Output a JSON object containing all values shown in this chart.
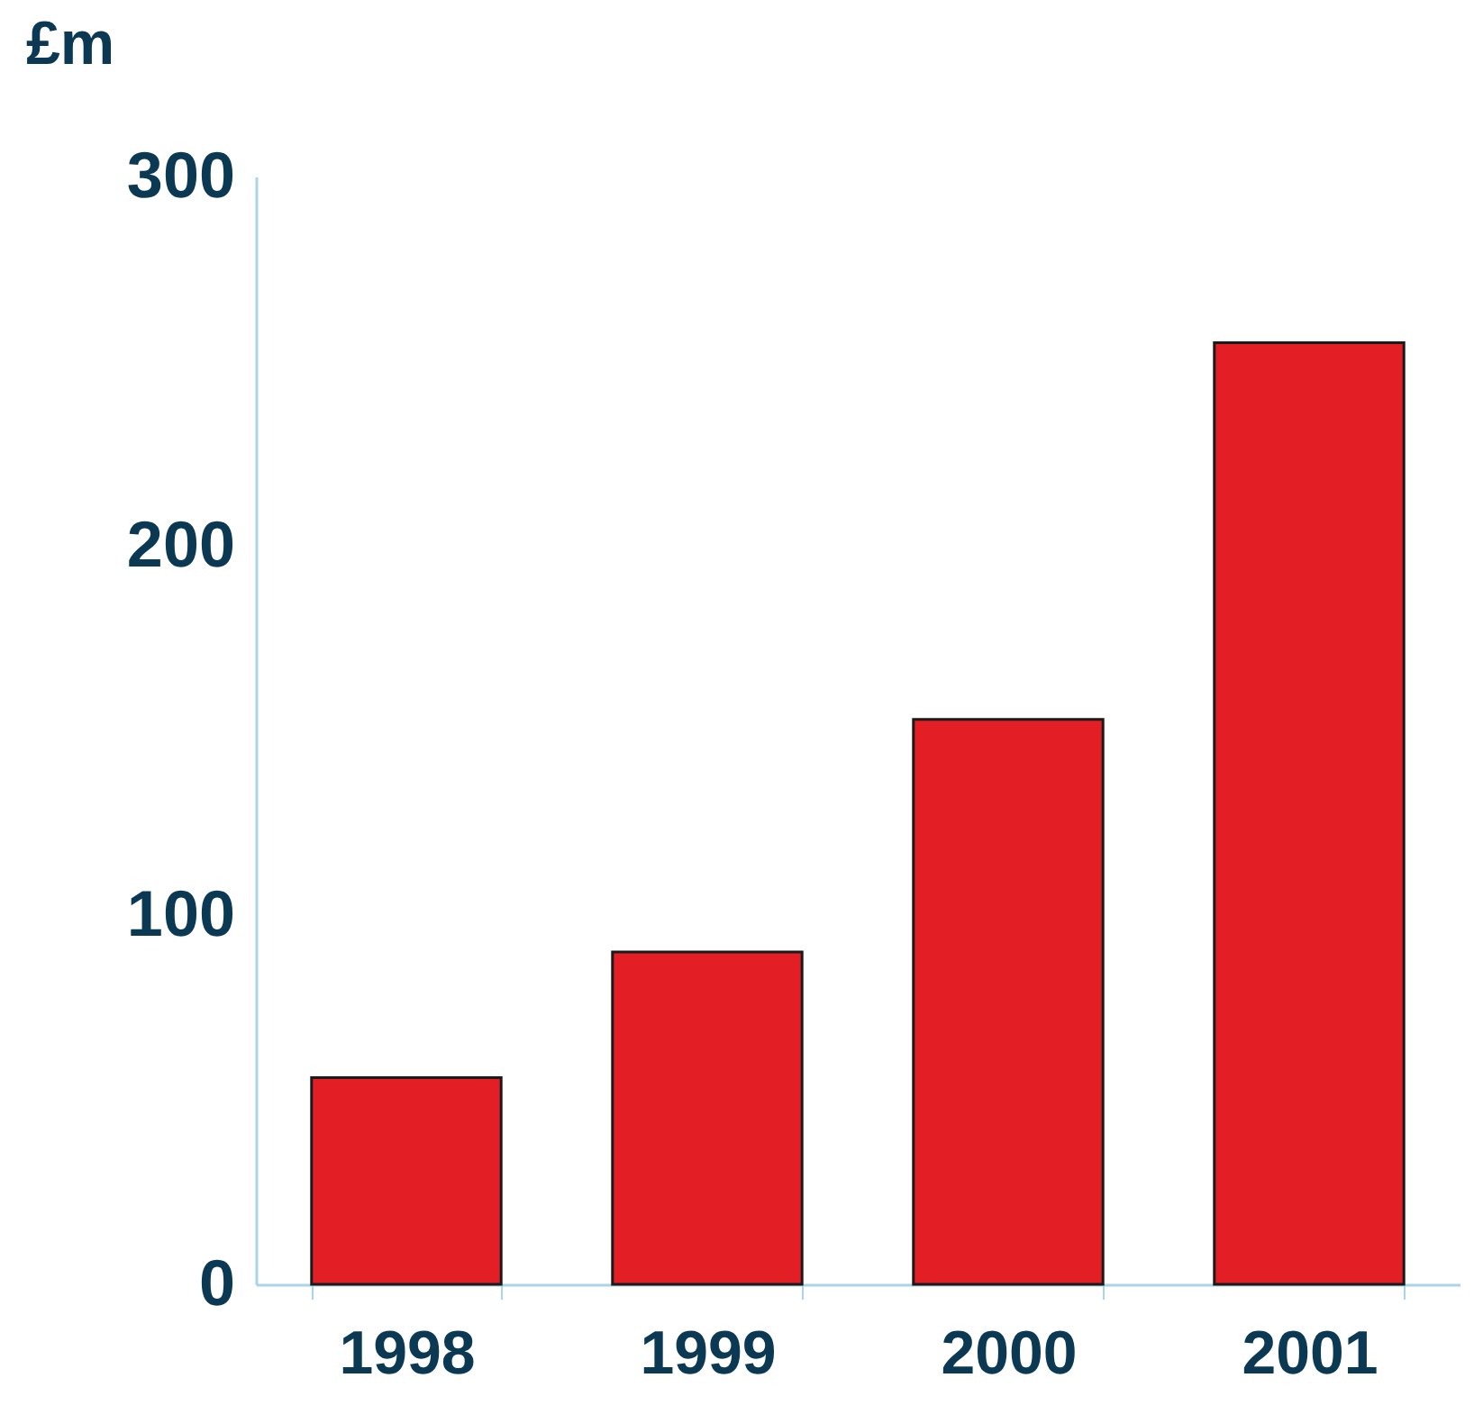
{
  "chart_data": {
    "type": "bar",
    "ylabel": "£m",
    "categories": [
      "1998",
      "1999",
      "2000",
      "2001"
    ],
    "values": [
      56,
      90,
      153,
      255
    ],
    "color": "#e31e24",
    "ylim": [
      0,
      300
    ],
    "yticks": [
      0,
      100,
      200,
      300
    ],
    "grid": false
  }
}
